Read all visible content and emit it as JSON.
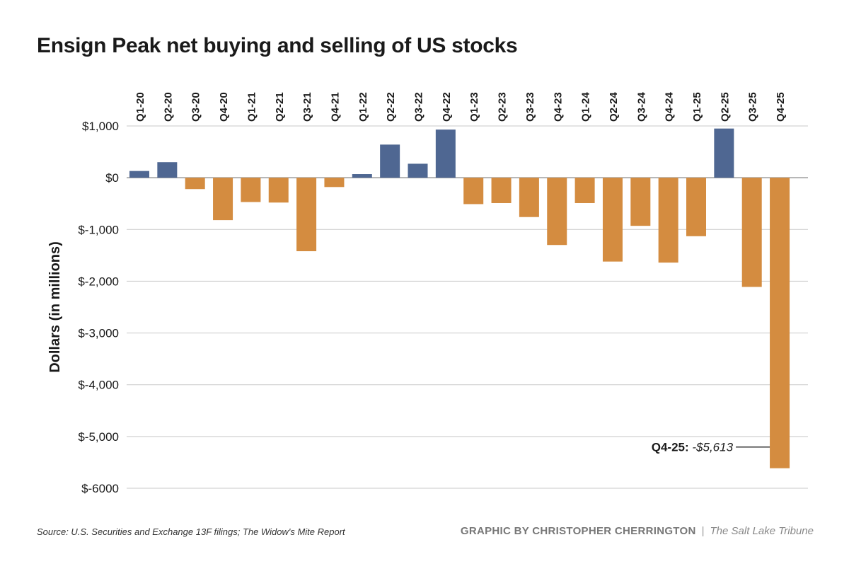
{
  "chart_data": {
    "type": "bar",
    "title": "Ensign Peak net buying and selling of US stocks",
    "xlabel": "",
    "ylabel": "Dollars (in millions)",
    "ylim": [
      -6000,
      1000
    ],
    "yticks": [
      1000,
      0,
      -1000,
      -2000,
      -3000,
      -4000,
      -5000,
      -6000
    ],
    "ytick_labels": [
      "$1,000",
      "$0",
      "$-1,000",
      "$-2,000",
      "$-3,000",
      "$-4,000",
      "$-5,000",
      "$-6000"
    ],
    "categories": [
      "Q1-20",
      "Q2-20",
      "Q3-20",
      "Q4-20",
      "Q1-21",
      "Q2-21",
      "Q3-21",
      "Q4-21",
      "Q1-22",
      "Q2-22",
      "Q3-22",
      "Q4-22",
      "Q1-23",
      "Q2-23",
      "Q3-23",
      "Q4-23",
      "Q1-24",
      "Q2-24",
      "Q3-24",
      "Q4-24",
      "Q1-25",
      "Q2-25",
      "Q3-25",
      "Q4-25"
    ],
    "values": [
      130,
      300,
      -220,
      -820,
      -470,
      -480,
      -1420,
      -180,
      70,
      640,
      270,
      930,
      -510,
      -490,
      -760,
      -1300,
      -490,
      -1620,
      -930,
      -1640,
      -1130,
      950,
      -2110,
      -5613
    ],
    "colors": {
      "positive": "#4f6792",
      "negative": "#d48c40",
      "grid": "#c9c9c9",
      "axis": "#888888"
    },
    "grid": true,
    "annotation": {
      "category": "Q4-25",
      "label": "Q4-25:",
      "value_text": "-$5,613"
    }
  },
  "footer": {
    "source": "Source: U.S. Securities and Exchange 13F filings; The Widow's Mite Report",
    "credit": "GRAPHIC BY CHRISTOPHER CHERRINGTON",
    "separator": "|",
    "publication": "The Salt Lake Tribune"
  }
}
